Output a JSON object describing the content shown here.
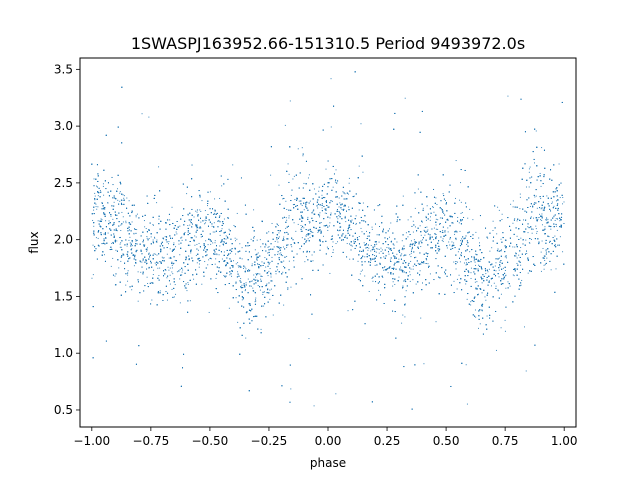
{
  "chart_data": {
    "type": "scatter",
    "title": "1SWASPJ163952.66-151310.5 Period 9493972.0s",
    "xlabel": "phase",
    "ylabel": "flux",
    "xlim": [
      -1.05,
      1.05
    ],
    "ylim": [
      0.35,
      3.6
    ],
    "x_ticks": [
      -1.0,
      -0.75,
      -0.5,
      -0.25,
      0.0,
      0.25,
      0.5,
      0.75,
      1.0
    ],
    "x_tick_labels": [
      "−1.00",
      "−0.75",
      "−0.50",
      "−0.25",
      "0.00",
      "0.25",
      "0.50",
      "0.75",
      "1.00"
    ],
    "y_ticks": [
      0.5,
      1.0,
      1.5,
      2.0,
      2.5,
      3.0,
      3.5
    ],
    "y_tick_labels": [
      "0.5",
      "1.0",
      "1.5",
      "2.0",
      "2.5",
      "3.0",
      "3.5"
    ],
    "grid": false,
    "legend": "none",
    "marker_color": "#1f77b4",
    "point_count_estimate": 9000,
    "phase_range": [
      -1.0,
      1.0
    ],
    "period_repeat": 1.0,
    "flux_profile": [
      {
        "phase": -0.98,
        "median": 2.2,
        "spread": 0.18
      },
      {
        "phase": -0.92,
        "median": 2.15,
        "spread": 0.2
      },
      {
        "phase": -0.87,
        "median": 2.1,
        "spread": 0.3
      },
      {
        "phase": -0.82,
        "median": 1.9,
        "spread": 0.2
      },
      {
        "phase": -0.75,
        "median": 1.85,
        "spread": 0.18
      },
      {
        "phase": -0.68,
        "median": 1.8,
        "spread": 0.2
      },
      {
        "phase": -0.62,
        "median": 1.9,
        "spread": 0.22
      },
      {
        "phase": -0.55,
        "median": 2.05,
        "spread": 0.2
      },
      {
        "phase": -0.48,
        "median": 2.0,
        "spread": 0.2
      },
      {
        "phase": -0.42,
        "median": 1.9,
        "spread": 0.22
      },
      {
        "phase": -0.36,
        "median": 1.6,
        "spread": 0.25
      },
      {
        "phase": -0.3,
        "median": 1.7,
        "spread": 0.25
      },
      {
        "phase": -0.24,
        "median": 1.85,
        "spread": 0.22
      },
      {
        "phase": -0.18,
        "median": 2.0,
        "spread": 0.25
      },
      {
        "phase": -0.13,
        "median": 2.3,
        "spread": 0.28
      },
      {
        "phase": -0.07,
        "median": 2.1,
        "spread": 0.22
      },
      {
        "phase": -0.02,
        "median": 2.2,
        "spread": 0.2
      },
      {
        "phase": 0.02,
        "median": 2.2,
        "spread": 0.18
      },
      {
        "phase": 0.08,
        "median": 2.15,
        "spread": 0.2
      },
      {
        "phase": 0.13,
        "median": 2.1,
        "spread": 0.3
      },
      {
        "phase": 0.18,
        "median": 1.9,
        "spread": 0.2
      },
      {
        "phase": 0.25,
        "median": 1.85,
        "spread": 0.18
      },
      {
        "phase": 0.32,
        "median": 1.8,
        "spread": 0.2
      },
      {
        "phase": 0.38,
        "median": 1.9,
        "spread": 0.22
      },
      {
        "phase": 0.45,
        "median": 2.05,
        "spread": 0.2
      },
      {
        "phase": 0.52,
        "median": 2.0,
        "spread": 0.2
      },
      {
        "phase": 0.58,
        "median": 1.9,
        "spread": 0.22
      },
      {
        "phase": 0.64,
        "median": 1.6,
        "spread": 0.25
      },
      {
        "phase": 0.7,
        "median": 1.7,
        "spread": 0.25
      },
      {
        "phase": 0.76,
        "median": 1.85,
        "spread": 0.22
      },
      {
        "phase": 0.82,
        "median": 2.0,
        "spread": 0.25
      },
      {
        "phase": 0.87,
        "median": 2.3,
        "spread": 0.28
      },
      {
        "phase": 0.93,
        "median": 2.1,
        "spread": 0.22
      },
      {
        "phase": 0.98,
        "median": 2.2,
        "spread": 0.2
      }
    ],
    "outlier_range": [
      0.5,
      3.5
    ]
  }
}
